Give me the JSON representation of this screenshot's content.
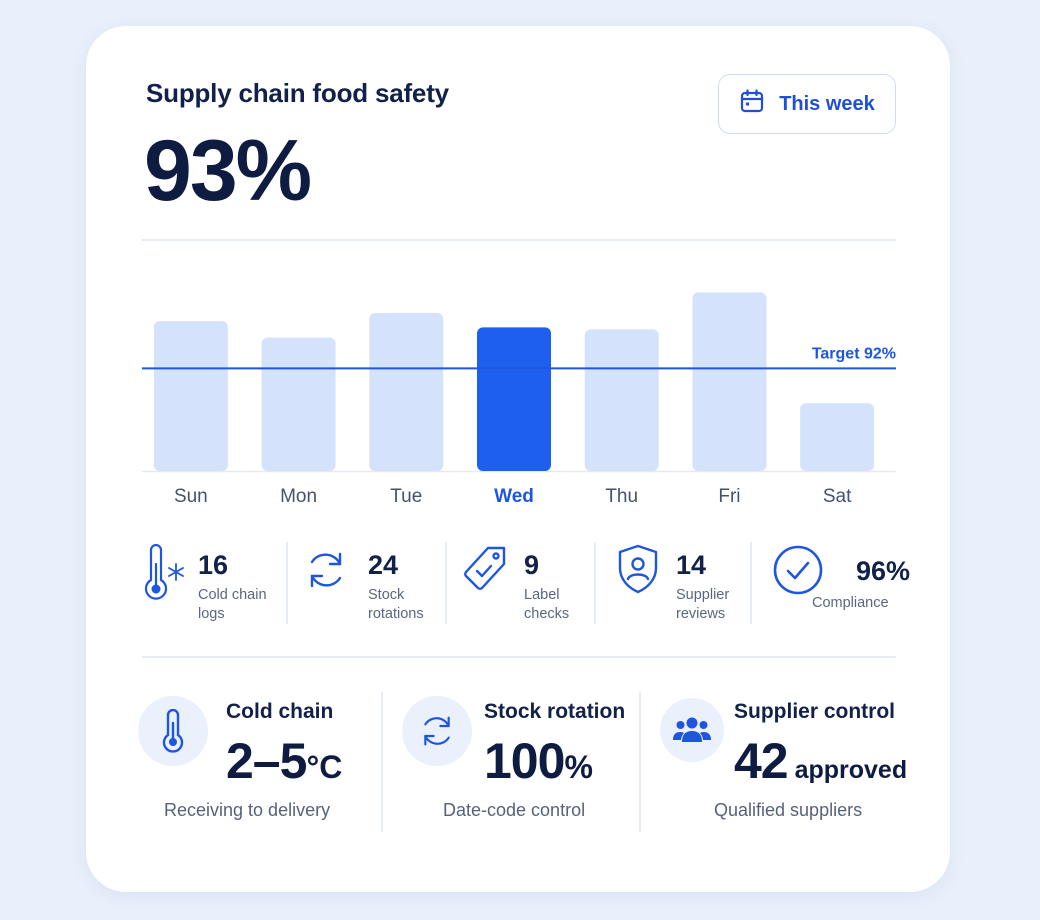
{
  "header": {
    "title": "Supply chain food safety",
    "score": "93%",
    "period_label": "This week"
  },
  "chart_data": {
    "type": "bar",
    "categories": [
      "Sun",
      "Mon",
      "Tue",
      "Wed",
      "Thu",
      "Fri",
      "Sat"
    ],
    "values": [
      94.3,
      93.5,
      94.7,
      94.0,
      93.9,
      95.7,
      90.3
    ],
    "highlight": "Wed",
    "target": {
      "label": "Target 92%",
      "value": 92
    },
    "ylim": [
      87,
      96.5
    ],
    "colors": {
      "bar": "#d4e3fb",
      "highlight": "#1f5ff0",
      "target_line": "#1e56e0"
    }
  },
  "stats": [
    {
      "value": "16",
      "label_lines": [
        "Cold chain",
        "logs"
      ],
      "icon": "thermometer-snowflake-icon"
    },
    {
      "value": "24",
      "label_lines": [
        "Stock",
        "rotations"
      ],
      "icon": "rotate-icon"
    },
    {
      "value": "9",
      "label_lines": [
        "Label",
        "checks"
      ],
      "icon": "tag-check-icon"
    },
    {
      "value": "14",
      "label_lines": [
        "Supplier",
        "reviews"
      ],
      "icon": "shield-user-icon"
    },
    {
      "value": "96%",
      "label_lines": [
        "Compliance"
      ],
      "icon": "check-circle-icon"
    }
  ],
  "panels": [
    {
      "title": "Cold chain",
      "value": "2–5",
      "unit": "°C",
      "subtitle": "Receiving to delivery",
      "icon": "thermometer-icon"
    },
    {
      "title": "Stock rotation",
      "value": "100",
      "unit": "%",
      "subtitle": "Date-code control",
      "icon": "rotate-icon"
    },
    {
      "title": "Supplier control",
      "value": "42",
      "unit": " approved",
      "subtitle": "Qualified suppliers",
      "icon": "users-icon"
    }
  ],
  "colors": {
    "accent": "#1e56e0",
    "text": "#12214a",
    "muted": "#5a6682",
    "background": "#e9f0fb"
  }
}
